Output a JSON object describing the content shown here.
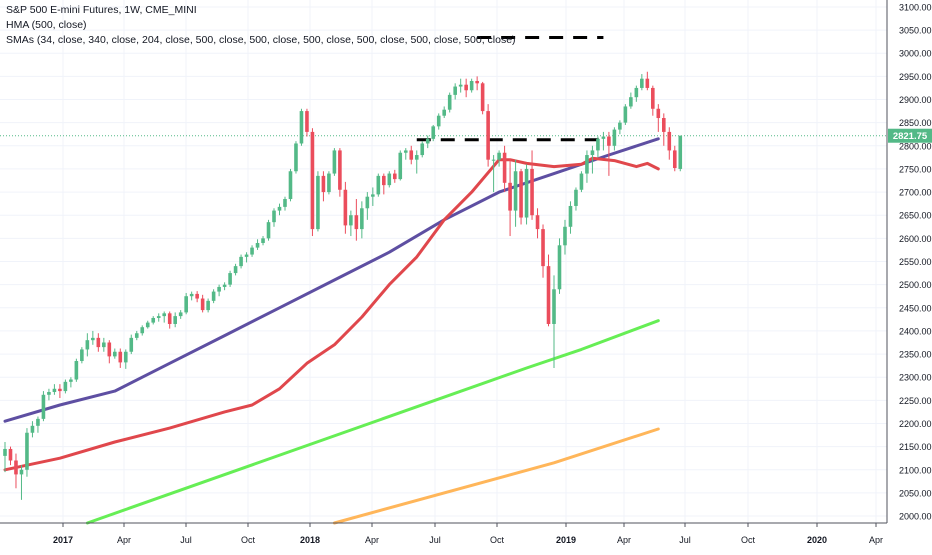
{
  "legend": {
    "title": "S&P 500 E-mini Futures, 1W, CME_MINI",
    "hma": "HMA (500, close)",
    "smas": "SMAs (34, close, 340, close, 204, close, 500, close, 500, close, 500, close, 500, close, 500, close, 500, close)"
  },
  "chart_data": {
    "type": "line",
    "y_axis_ticks": [
      2000,
      2050,
      2100,
      2150,
      2200,
      2250,
      2300,
      2350,
      2400,
      2450,
      2500,
      2550,
      2600,
      2650,
      2700,
      2750,
      2800,
      2850,
      2900,
      2950,
      3000,
      3050,
      3100
    ],
    "ylim": [
      1985,
      3115
    ],
    "x_tick_labels": [
      "2017",
      "Apr",
      "Jul",
      "Oct",
      "2018",
      "Apr",
      "Jul",
      "Oct",
      "2019",
      "Apr",
      "Jul",
      "Oct",
      "2020",
      "Apr"
    ],
    "x_tick_labels_bold": [
      "2017",
      "2018",
      "2019",
      "2020"
    ],
    "last_price_label": "2821.75",
    "last_price": 2821.75,
    "colors": {
      "up": "#53b987",
      "down": "#eb4d5c",
      "hma": "#e0474c",
      "sma_blue": "#5e4fa2",
      "sma_green": "#66ee55",
      "sma_orange": "#ffb65a",
      "price_label_bg": "#53b987"
    },
    "candles": [
      [
        2130,
        2160,
        2095,
        2145
      ],
      [
        2145,
        2150,
        2110,
        2120
      ],
      [
        2120,
        2135,
        2060,
        2090
      ],
      [
        2090,
        2110,
        2035,
        2100
      ],
      [
        2100,
        2190,
        2085,
        2180
      ],
      [
        2180,
        2205,
        2170,
        2195
      ],
      [
        2195,
        2215,
        2180,
        2210
      ],
      [
        2210,
        2270,
        2205,
        2262
      ],
      [
        2262,
        2275,
        2250,
        2268
      ],
      [
        2268,
        2285,
        2262,
        2275
      ],
      [
        2275,
        2285,
        2255,
        2270
      ],
      [
        2270,
        2295,
        2265,
        2290
      ],
      [
        2290,
        2300,
        2278,
        2295
      ],
      [
        2295,
        2340,
        2290,
        2335
      ],
      [
        2335,
        2365,
        2330,
        2360
      ],
      [
        2360,
        2395,
        2345,
        2380
      ],
      [
        2380,
        2400,
        2370,
        2385
      ],
      [
        2385,
        2395,
        2355,
        2365
      ],
      [
        2365,
        2385,
        2355,
        2375
      ],
      [
        2375,
        2380,
        2330,
        2345
      ],
      [
        2345,
        2362,
        2340,
        2355
      ],
      [
        2355,
        2362,
        2320,
        2332
      ],
      [
        2332,
        2360,
        2318,
        2355
      ],
      [
        2355,
        2392,
        2350,
        2385
      ],
      [
        2385,
        2400,
        2380,
        2395
      ],
      [
        2395,
        2412,
        2390,
        2408
      ],
      [
        2408,
        2422,
        2405,
        2418
      ],
      [
        2418,
        2432,
        2414,
        2428
      ],
      [
        2428,
        2438,
        2420,
        2432
      ],
      [
        2432,
        2442,
        2418,
        2438
      ],
      [
        2438,
        2442,
        2405,
        2415
      ],
      [
        2415,
        2440,
        2408,
        2432
      ],
      [
        2432,
        2445,
        2426,
        2440
      ],
      [
        2440,
        2482,
        2436,
        2475
      ],
      [
        2475,
        2485,
        2466,
        2480
      ],
      [
        2480,
        2486,
        2462,
        2470
      ],
      [
        2470,
        2478,
        2440,
        2445
      ],
      [
        2445,
        2470,
        2440,
        2465
      ],
      [
        2465,
        2490,
        2460,
        2485
      ],
      [
        2485,
        2500,
        2475,
        2495
      ],
      [
        2495,
        2505,
        2488,
        2500
      ],
      [
        2500,
        2530,
        2495,
        2525
      ],
      [
        2525,
        2545,
        2520,
        2540
      ],
      [
        2540,
        2565,
        2535,
        2560
      ],
      [
        2560,
        2570,
        2548,
        2565
      ],
      [
        2565,
        2585,
        2560,
        2580
      ],
      [
        2580,
        2598,
        2575,
        2590
      ],
      [
        2590,
        2605,
        2585,
        2600
      ],
      [
        2600,
        2640,
        2595,
        2635
      ],
      [
        2635,
        2665,
        2625,
        2660
      ],
      [
        2660,
        2675,
        2650,
        2668
      ],
      [
        2668,
        2690,
        2660,
        2685
      ],
      [
        2685,
        2750,
        2680,
        2745
      ],
      [
        2745,
        2810,
        2740,
        2805
      ],
      [
        2805,
        2880,
        2800,
        2875
      ],
      [
        2875,
        2880,
        2820,
        2830
      ],
      [
        2830,
        2838,
        2605,
        2620
      ],
      [
        2620,
        2745,
        2615,
        2735
      ],
      [
        2735,
        2745,
        2680,
        2700
      ],
      [
        2700,
        2745,
        2695,
        2740
      ],
      [
        2740,
        2795,
        2735,
        2790
      ],
      [
        2790,
        2795,
        2690,
        2705
      ],
      [
        2705,
        2722,
        2610,
        2628
      ],
      [
        2628,
        2660,
        2605,
        2650
      ],
      [
        2650,
        2685,
        2595,
        2620
      ],
      [
        2620,
        2680,
        2600,
        2665
      ],
      [
        2665,
        2700,
        2640,
        2690
      ],
      [
        2690,
        2710,
        2670,
        2695
      ],
      [
        2695,
        2740,
        2690,
        2735
      ],
      [
        2735,
        2740,
        2695,
        2715
      ],
      [
        2715,
        2745,
        2710,
        2740
      ],
      [
        2740,
        2748,
        2720,
        2728
      ],
      [
        2728,
        2790,
        2725,
        2785
      ],
      [
        2785,
        2795,
        2770,
        2790
      ],
      [
        2790,
        2800,
        2760,
        2770
      ],
      [
        2770,
        2790,
        2740,
        2780
      ],
      [
        2780,
        2810,
        2775,
        2805
      ],
      [
        2805,
        2822,
        2795,
        2815
      ],
      [
        2815,
        2845,
        2810,
        2842
      ],
      [
        2842,
        2870,
        2835,
        2865
      ],
      [
        2865,
        2885,
        2860,
        2878
      ],
      [
        2878,
        2915,
        2872,
        2910
      ],
      [
        2910,
        2935,
        2900,
        2928
      ],
      [
        2928,
        2945,
        2915,
        2932
      ],
      [
        2932,
        2945,
        2905,
        2920
      ],
      [
        2920,
        2945,
        2915,
        2940
      ],
      [
        2940,
        2950,
        2920,
        2935
      ],
      [
        2935,
        2938,
        2868,
        2875
      ],
      [
        2875,
        2890,
        2755,
        2770
      ],
      [
        2770,
        2780,
        2700,
        2770
      ],
      [
        2770,
        2790,
        2755,
        2785
      ],
      [
        2785,
        2800,
        2700,
        2720
      ],
      [
        2720,
        2772,
        2605,
        2660
      ],
      [
        2660,
        2770,
        2625,
        2745
      ],
      [
        2745,
        2750,
        2630,
        2645
      ],
      [
        2645,
        2760,
        2630,
        2750
      ],
      [
        2750,
        2790,
        2640,
        2650
      ],
      [
        2650,
        2665,
        2600,
        2620
      ],
      [
        2620,
        2630,
        2515,
        2540
      ],
      [
        2540,
        2565,
        2410,
        2415
      ],
      [
        2415,
        2520,
        2320,
        2490
      ],
      [
        2490,
        2600,
        2480,
        2585
      ],
      [
        2585,
        2640,
        2565,
        2625
      ],
      [
        2625,
        2680,
        2610,
        2670
      ],
      [
        2670,
        2710,
        2660,
        2705
      ],
      [
        2705,
        2745,
        2700,
        2740
      ],
      [
        2740,
        2790,
        2720,
        2780
      ],
      [
        2780,
        2800,
        2740,
        2790
      ],
      [
        2790,
        2820,
        2775,
        2815
      ],
      [
        2815,
        2830,
        2790,
        2820
      ],
      [
        2820,
        2830,
        2735,
        2800
      ],
      [
        2800,
        2840,
        2790,
        2835
      ],
      [
        2835,
        2855,
        2825,
        2850
      ],
      [
        2850,
        2890,
        2845,
        2885
      ],
      [
        2885,
        2915,
        2880,
        2905
      ],
      [
        2905,
        2930,
        2895,
        2925
      ],
      [
        2925,
        2955,
        2920,
        2945
      ],
      [
        2945,
        2960,
        2920,
        2925
      ],
      [
        2925,
        2930,
        2865,
        2880
      ],
      [
        2880,
        2890,
        2830,
        2860
      ],
      [
        2860,
        2870,
        2800,
        2830
      ],
      [
        2830,
        2840,
        2770,
        2790
      ],
      [
        2790,
        2800,
        2745,
        2752
      ],
      [
        2750,
        2822,
        2745,
        2821.75
      ]
    ],
    "hma": [
      [
        0,
        2100
      ],
      [
        10,
        2125
      ],
      [
        20,
        2160
      ],
      [
        30,
        2190
      ],
      [
        40,
        2225
      ],
      [
        45,
        2240
      ],
      [
        50,
        2275
      ],
      [
        55,
        2330
      ],
      [
        60,
        2370
      ],
      [
        65,
        2430
      ],
      [
        70,
        2500
      ],
      [
        75,
        2560
      ],
      [
        80,
        2640
      ],
      [
        85,
        2700
      ],
      [
        90,
        2770
      ],
      [
        92,
        2770
      ],
      [
        95,
        2762
      ],
      [
        100,
        2755
      ],
      [
        105,
        2760
      ],
      [
        107,
        2773
      ],
      [
        111,
        2768
      ],
      [
        115,
        2755
      ],
      [
        117,
        2762
      ],
      [
        119,
        2750
      ]
    ],
    "sma_blue": [
      [
        0,
        2205
      ],
      [
        10,
        2240
      ],
      [
        20,
        2270
      ],
      [
        30,
        2330
      ],
      [
        40,
        2390
      ],
      [
        50,
        2450
      ],
      [
        60,
        2510
      ],
      [
        70,
        2570
      ],
      [
        80,
        2640
      ],
      [
        90,
        2700
      ],
      [
        100,
        2740
      ],
      [
        110,
        2780
      ],
      [
        119,
        2815
      ]
    ],
    "sma_green_line": [
      [
        15,
        1985
      ],
      [
        95,
        2320
      ],
      [
        105,
        2360
      ],
      [
        119,
        2422
      ]
    ],
    "sma_orange_line": [
      [
        60,
        1985
      ],
      [
        100,
        2115
      ],
      [
        119,
        2188
      ]
    ],
    "dashed_levels": [
      {
        "y": 3034,
        "from": 86,
        "to": 109
      },
      {
        "y": 2813,
        "from": 75,
        "to": 109
      }
    ]
  }
}
